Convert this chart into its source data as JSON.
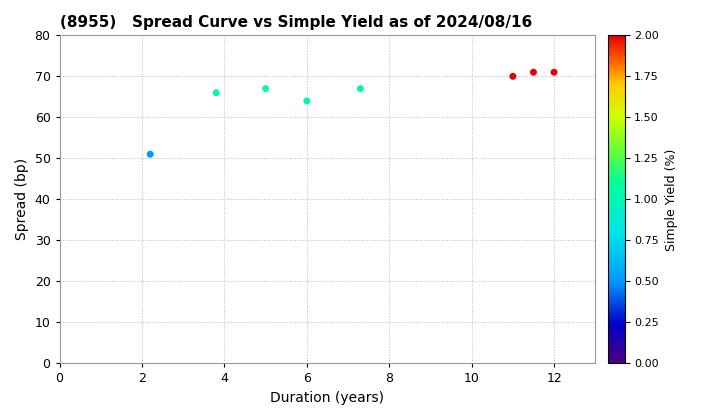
{
  "title": "(8955)   Spread Curve vs Simple Yield as of 2024/08/16",
  "xlabel": "Duration (years)",
  "ylabel": "Spread (bp)",
  "colorbar_label": "Simple Yield (%)",
  "xlim": [
    0,
    13
  ],
  "ylim": [
    0,
    80
  ],
  "xticks": [
    0,
    2,
    4,
    6,
    8,
    10,
    12
  ],
  "yticks": [
    0,
    10,
    20,
    30,
    40,
    50,
    60,
    70,
    80
  ],
  "colorbar_ticks": [
    0.0,
    0.25,
    0.5,
    0.75,
    1.0,
    1.25,
    1.5,
    1.75,
    2.0
  ],
  "vmin": 0.0,
  "vmax": 2.0,
  "points": [
    {
      "duration": 2.2,
      "spread": 51,
      "simple_yield": 0.5
    },
    {
      "duration": 3.8,
      "spread": 66,
      "simple_yield": 1.0
    },
    {
      "duration": 5.0,
      "spread": 67,
      "simple_yield": 1.05
    },
    {
      "duration": 6.0,
      "spread": 64,
      "simple_yield": 1.0
    },
    {
      "duration": 7.3,
      "spread": 67,
      "simple_yield": 1.05
    },
    {
      "duration": 11.0,
      "spread": 70,
      "simple_yield": 2.0
    },
    {
      "duration": 11.5,
      "spread": 71,
      "simple_yield": 2.0
    },
    {
      "duration": 12.0,
      "spread": 71,
      "simple_yield": 2.0
    }
  ],
  "marker_size": 25,
  "background_color": "#ffffff",
  "grid_color": "#bbbbbb",
  "grid_style": ":"
}
